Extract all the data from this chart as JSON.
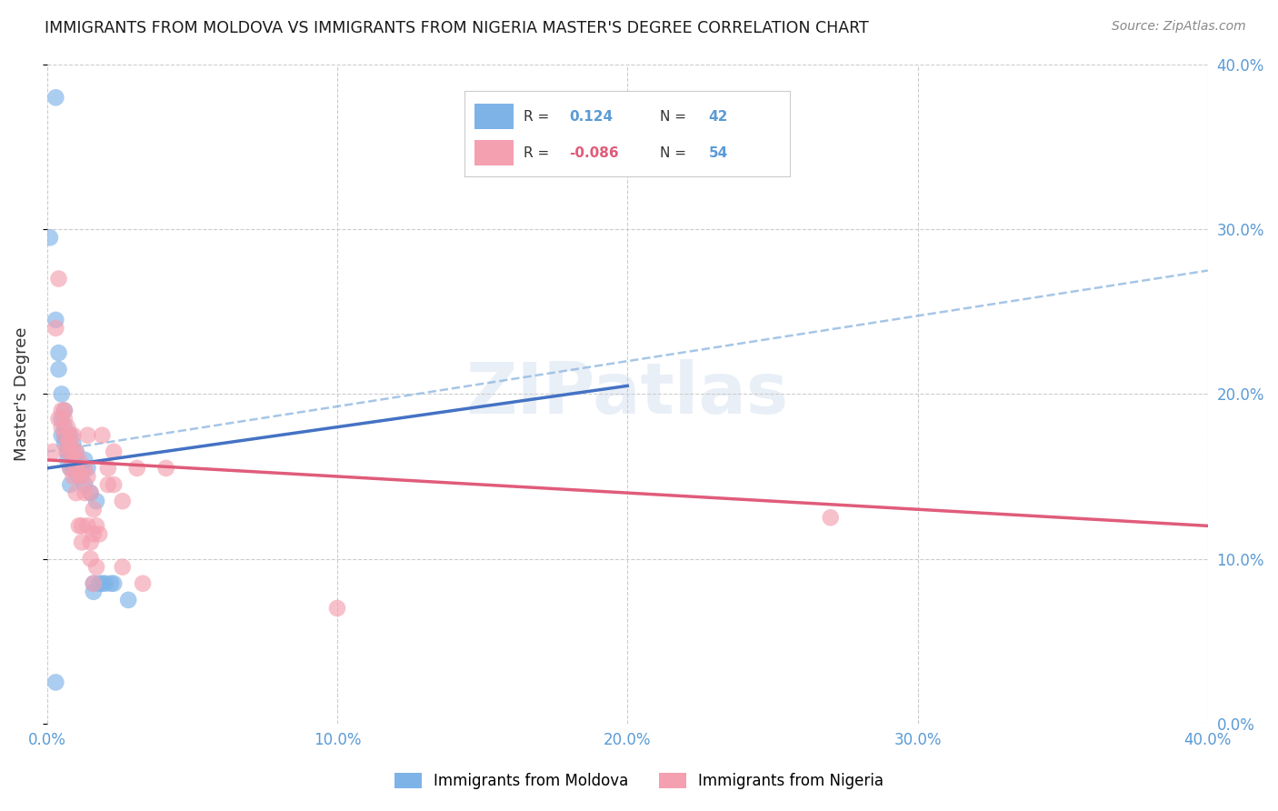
{
  "title": "IMMIGRANTS FROM MOLDOVA VS IMMIGRANTS FROM NIGERIA MASTER'S DEGREE CORRELATION CHART",
  "source": "Source: ZipAtlas.com",
  "ylabel": "Master's Degree",
  "r_moldova": 0.124,
  "n_moldova": 42,
  "r_nigeria": -0.086,
  "n_nigeria": 54,
  "color_moldova": "#7EB3E8",
  "color_nigeria": "#F4A0B0",
  "trend_moldova_color": "#4472C4",
  "trend_nigeria_color": "#E05C7A",
  "trend_dashed_color": "#90B8E0",
  "watermark": "ZIPatlas",
  "xlim": [
    0.0,
    0.4
  ],
  "ylim": [
    0.0,
    0.4
  ],
  "x_ticks": [
    0.0,
    0.1,
    0.2,
    0.3,
    0.4
  ],
  "y_ticks": [
    0.0,
    0.1,
    0.2,
    0.3,
    0.4
  ],
  "moldova_points": [
    [
      0.003,
      0.38
    ],
    [
      0.001,
      0.295
    ],
    [
      0.003,
      0.245
    ],
    [
      0.004,
      0.225
    ],
    [
      0.004,
      0.215
    ],
    [
      0.005,
      0.2
    ],
    [
      0.005,
      0.185
    ],
    [
      0.005,
      0.175
    ],
    [
      0.006,
      0.19
    ],
    [
      0.006,
      0.18
    ],
    [
      0.006,
      0.175
    ],
    [
      0.006,
      0.17
    ],
    [
      0.007,
      0.175
    ],
    [
      0.007,
      0.17
    ],
    [
      0.007,
      0.165
    ],
    [
      0.007,
      0.16
    ],
    [
      0.008,
      0.175
    ],
    [
      0.008,
      0.165
    ],
    [
      0.008,
      0.155
    ],
    [
      0.008,
      0.145
    ],
    [
      0.009,
      0.17
    ],
    [
      0.009,
      0.16
    ],
    [
      0.009,
      0.155
    ],
    [
      0.01,
      0.165
    ],
    [
      0.01,
      0.16
    ],
    [
      0.011,
      0.155
    ],
    [
      0.011,
      0.15
    ],
    [
      0.012,
      0.155
    ],
    [
      0.013,
      0.16
    ],
    [
      0.013,
      0.145
    ],
    [
      0.014,
      0.155
    ],
    [
      0.015,
      0.14
    ],
    [
      0.016,
      0.085
    ],
    [
      0.016,
      0.08
    ],
    [
      0.017,
      0.135
    ],
    [
      0.018,
      0.085
    ],
    [
      0.019,
      0.085
    ],
    [
      0.02,
      0.085
    ],
    [
      0.022,
      0.085
    ],
    [
      0.023,
      0.085
    ],
    [
      0.028,
      0.075
    ],
    [
      0.003,
      0.025
    ]
  ],
  "nigeria_points": [
    [
      0.002,
      0.165
    ],
    [
      0.003,
      0.24
    ],
    [
      0.004,
      0.27
    ],
    [
      0.004,
      0.185
    ],
    [
      0.005,
      0.19
    ],
    [
      0.005,
      0.18
    ],
    [
      0.006,
      0.19
    ],
    [
      0.006,
      0.185
    ],
    [
      0.006,
      0.175
    ],
    [
      0.007,
      0.18
    ],
    [
      0.007,
      0.17
    ],
    [
      0.007,
      0.165
    ],
    [
      0.008,
      0.175
    ],
    [
      0.008,
      0.17
    ],
    [
      0.008,
      0.165
    ],
    [
      0.008,
      0.155
    ],
    [
      0.009,
      0.175
    ],
    [
      0.009,
      0.165
    ],
    [
      0.009,
      0.15
    ],
    [
      0.01,
      0.165
    ],
    [
      0.01,
      0.155
    ],
    [
      0.01,
      0.14
    ],
    [
      0.011,
      0.16
    ],
    [
      0.011,
      0.15
    ],
    [
      0.011,
      0.12
    ],
    [
      0.012,
      0.15
    ],
    [
      0.012,
      0.12
    ],
    [
      0.012,
      0.11
    ],
    [
      0.013,
      0.155
    ],
    [
      0.013,
      0.14
    ],
    [
      0.014,
      0.175
    ],
    [
      0.014,
      0.15
    ],
    [
      0.014,
      0.12
    ],
    [
      0.015,
      0.14
    ],
    [
      0.015,
      0.11
    ],
    [
      0.015,
      0.1
    ],
    [
      0.016,
      0.13
    ],
    [
      0.016,
      0.115
    ],
    [
      0.016,
      0.085
    ],
    [
      0.017,
      0.12
    ],
    [
      0.017,
      0.095
    ],
    [
      0.018,
      0.115
    ],
    [
      0.019,
      0.175
    ],
    [
      0.021,
      0.155
    ],
    [
      0.021,
      0.145
    ],
    [
      0.023,
      0.165
    ],
    [
      0.023,
      0.145
    ],
    [
      0.026,
      0.135
    ],
    [
      0.026,
      0.095
    ],
    [
      0.031,
      0.155
    ],
    [
      0.033,
      0.085
    ],
    [
      0.041,
      0.155
    ],
    [
      0.27,
      0.125
    ],
    [
      0.1,
      0.07
    ]
  ],
  "moldova_trend": [
    0.0,
    0.155,
    0.2,
    0.205
  ],
  "nigeria_trend": [
    0.0,
    0.16,
    0.4,
    0.12
  ],
  "dashed_trend": [
    0.0,
    0.165,
    0.4,
    0.275
  ]
}
